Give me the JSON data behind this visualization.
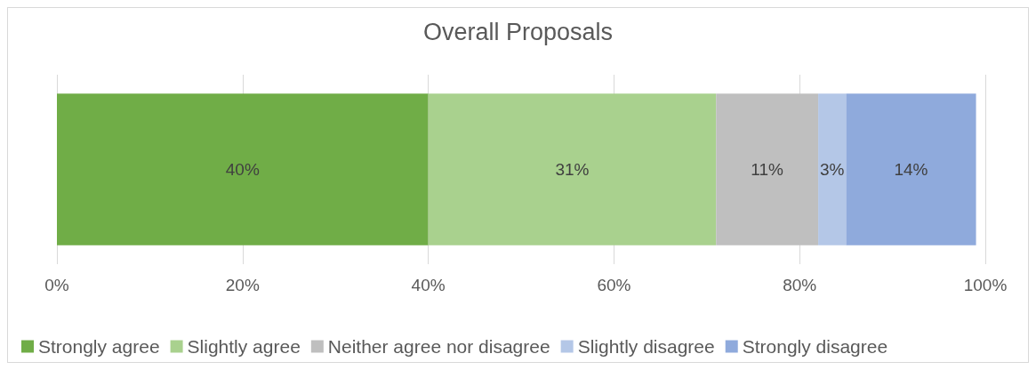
{
  "chart_data": {
    "type": "bar",
    "title": "Overall Proposals",
    "orientation": "horizontal",
    "stacked": true,
    "categories": [
      null
    ],
    "xlim": [
      0,
      100
    ],
    "xticks": [
      {
        "value": 0,
        "label": "0%"
      },
      {
        "value": 20,
        "label": "20%"
      },
      {
        "value": 40,
        "label": "40%"
      },
      {
        "value": 60,
        "label": "60%"
      },
      {
        "value": 80,
        "label": "80%"
      },
      {
        "value": 100,
        "label": "100%"
      }
    ],
    "grid": "x",
    "legend": "bottom",
    "series": [
      {
        "name": "Strongly agree",
        "color": "#70ad47",
        "values": [
          40
        ],
        "value_labels": [
          "40%"
        ]
      },
      {
        "name": "Slightly agree",
        "color": "#a9d18e",
        "values": [
          31
        ],
        "value_labels": [
          "31%"
        ]
      },
      {
        "name": "Neither agree nor disagree",
        "color": "#bfbfbf",
        "values": [
          11
        ],
        "value_labels": [
          "11%"
        ]
      },
      {
        "name": "Slightly disagree",
        "color": "#b4c7e7",
        "values": [
          3
        ],
        "value_labels": [
          "3%"
        ]
      },
      {
        "name": "Strongly disagree",
        "color": "#8faadc",
        "values": [
          14
        ],
        "value_labels": [
          "14%"
        ]
      }
    ]
  }
}
